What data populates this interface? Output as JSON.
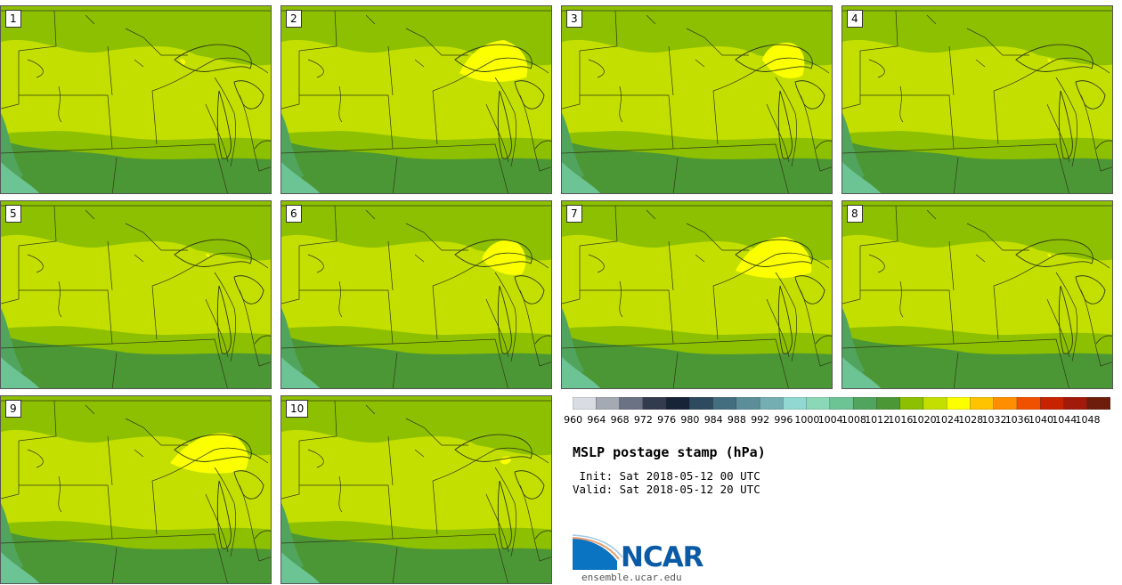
{
  "stamps": [
    {
      "label": "1"
    },
    {
      "label": "2"
    },
    {
      "label": "3"
    },
    {
      "label": "4"
    },
    {
      "label": "5"
    },
    {
      "label": "6"
    },
    {
      "label": "7"
    },
    {
      "label": "8"
    },
    {
      "label": "9"
    },
    {
      "label": "10"
    }
  ],
  "colorbar": {
    "labels": [
      "960",
      "964",
      "968",
      "972",
      "976",
      "980",
      "984",
      "988",
      "992",
      "996",
      "1000",
      "1004",
      "1008",
      "1012",
      "1016",
      "1020",
      "1024",
      "1028",
      "1032",
      "1036",
      "1040",
      "1044",
      "1048"
    ],
    "colors": [
      "#d9dde3",
      "#a4a9b3",
      "#6b7283",
      "#333c4e",
      "#172336",
      "#2d4a5e",
      "#436e80",
      "#5b8e99",
      "#74aeb2",
      "#91d8d2",
      "#8ad8b8",
      "#6cc394",
      "#51a45d",
      "#4c9735",
      "#8dc000",
      "#c3df00",
      "#fbff00",
      "#ffc300",
      "#ff8e00",
      "#f05100",
      "#c72300",
      "#a11a0a",
      "#6e1d0d"
    ]
  },
  "title": "MSLP postage stamp (hPa)",
  "init": " Init: Sat 2018-05-12 00 UTC",
  "valid": "Valid: Sat 2018-05-12 20 UTC",
  "logo": {
    "wordmark": "NCAR",
    "site": "ensemble.ucar.edu",
    "icon": "ncar-swoosh-icon"
  }
}
